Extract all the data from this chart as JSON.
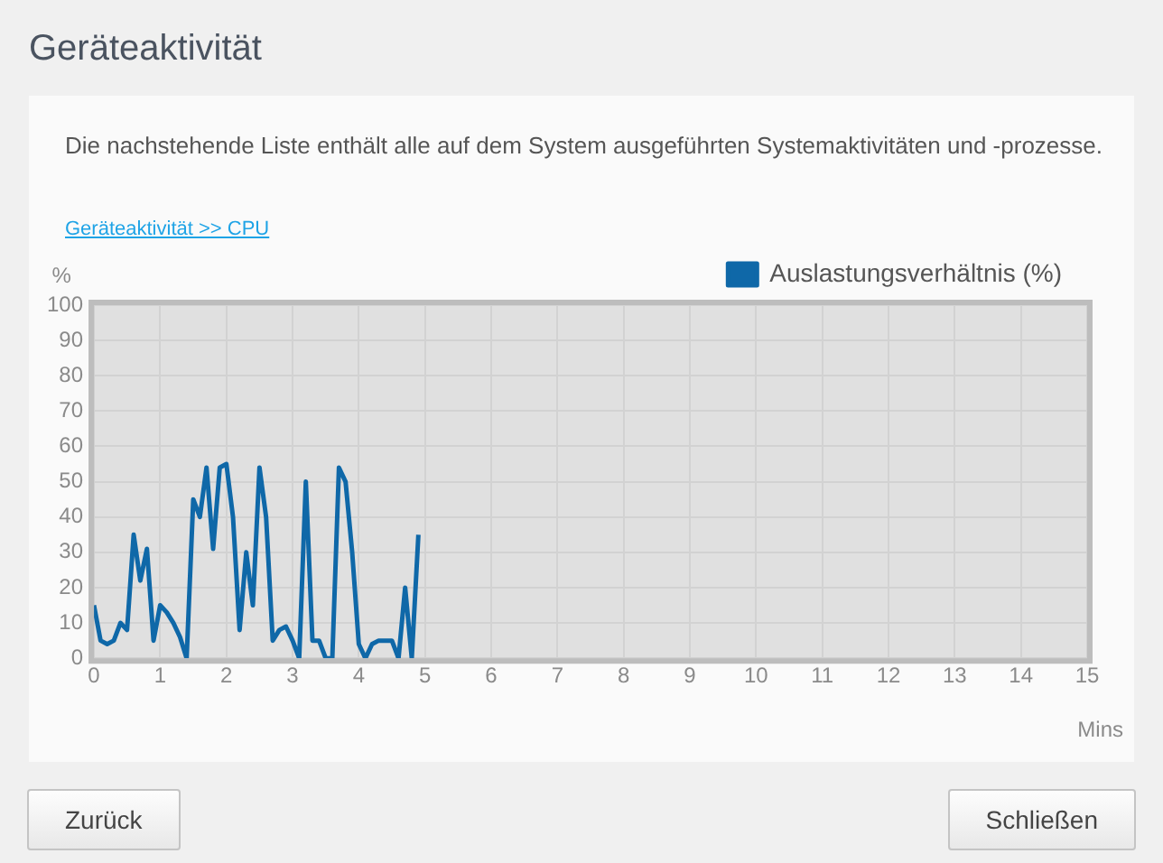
{
  "chart_data": {
    "type": "line",
    "title": "Geräteaktivität",
    "subtitle": "Die nachstehende Liste enthält alle auf dem System ausgeführten Systemaktivitäten und -prozesse.",
    "annotations": [
      "Geräteaktivität >> CPU",
      "Zurück",
      "Schließen"
    ],
    "xlabel": "Mins",
    "ylabel": "%",
    "series": [
      {
        "name": "Auslastungsverhältnis (%)",
        "color": "#0f68a8",
        "x": [
          0,
          0.1,
          0.2,
          0.3,
          0.4,
          0.5,
          0.6,
          0.7,
          0.8,
          0.9,
          1,
          1.1,
          1.2,
          1.3,
          1.4,
          1.5,
          1.6,
          1.7,
          1.8,
          1.9,
          2,
          2.1,
          2.2,
          2.3,
          2.4,
          2.5,
          2.6,
          2.7,
          2.8,
          2.9,
          3,
          3.1,
          3.2,
          3.3,
          3.4,
          3.5,
          3.6,
          3.7,
          3.8,
          3.9,
          4,
          4.1,
          4.2,
          4.3,
          4.4,
          4.5,
          4.6,
          4.7,
          4.8,
          4.9
        ],
        "values": [
          15,
          5,
          4,
          5,
          10,
          8,
          35,
          22,
          31,
          5,
          15,
          13,
          10,
          6,
          0,
          45,
          40,
          54,
          31,
          54,
          55,
          40,
          8,
          30,
          15,
          54,
          40,
          5,
          8,
          9,
          5,
          0,
          50,
          5,
          5,
          0,
          0,
          54,
          50,
          30,
          4,
          0,
          4,
          5,
          5,
          5,
          0,
          20,
          0,
          35
        ]
      }
    ],
    "xlim": [
      0,
      15
    ],
    "xticks": [
      0,
      1,
      2,
      3,
      4,
      5,
      6,
      7,
      8,
      9,
      10,
      11,
      12,
      13,
      14,
      15
    ],
    "ylim": [
      0,
      100
    ],
    "yticks": [
      0,
      10,
      20,
      30,
      40,
      50,
      60,
      70,
      80,
      90,
      100
    ],
    "grid": true,
    "legend": "top right",
    "marker": "none",
    "line_style": "solid"
  }
}
